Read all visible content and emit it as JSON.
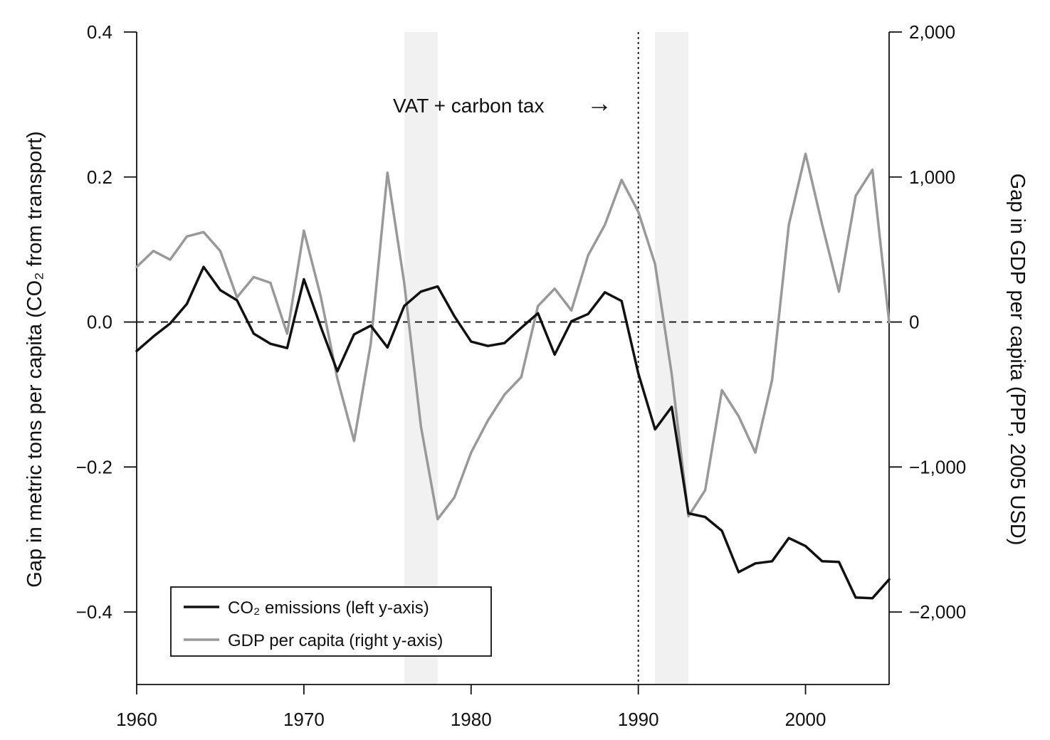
{
  "chart_data": {
    "type": "line",
    "title": "",
    "xlabel": "",
    "ylabel_left": "Gap in metric tons per capita (CO₂ from transport)",
    "ylabel_right": "Gap in GDP per capita (PPP, 2005 USD)",
    "x_range": [
      1960,
      2005
    ],
    "x_ticks": [
      1960,
      1970,
      1980,
      1990,
      2000
    ],
    "y_left_range": [
      -0.5,
      0.4
    ],
    "y_left_ticks": [
      0.4,
      0.2,
      0.0,
      -0.2,
      -0.4
    ],
    "y_left_tick_labels": [
      "0.4",
      "0.2",
      "0.0",
      "−0.2",
      "−0.4"
    ],
    "y_right_range": [
      -2500,
      2000
    ],
    "y_right_ticks": [
      2000,
      1000,
      0,
      -1000,
      -2000
    ],
    "y_right_tick_labels": [
      "2,000",
      "1,000",
      "0",
      "−1,000",
      "−2,000"
    ],
    "shaded_regions": [
      [
        1976,
        1978
      ],
      [
        1991,
        1993
      ]
    ],
    "vertical_line": 1990,
    "zero_line": 0,
    "annotation": "VAT + carbon tax",
    "annotation_arrow": "→",
    "legend_position": "bottom-left",
    "series": [
      {
        "name": "CO₂ emissions (left y-axis)",
        "axis": "left",
        "color": "#111111",
        "x": [
          1960,
          1961,
          1962,
          1963,
          1964,
          1965,
          1966,
          1967,
          1968,
          1969,
          1970,
          1971,
          1972,
          1973,
          1974,
          1975,
          1976,
          1977,
          1978,
          1979,
          1980,
          1981,
          1982,
          1983,
          1984,
          1985,
          1986,
          1987,
          1988,
          1989,
          1990,
          1991,
          1992,
          1993,
          1994,
          1995,
          1996,
          1997,
          1998,
          1999,
          2000,
          2001,
          2002,
          2003,
          2004,
          2005
        ],
        "values": [
          -0.04,
          -0.02,
          -0.002,
          0.025,
          0.076,
          0.044,
          0.03,
          -0.016,
          -0.03,
          -0.036,
          0.059,
          -0.006,
          -0.068,
          -0.017,
          -0.005,
          -0.035,
          0.022,
          0.042,
          0.049,
          0.008,
          -0.027,
          -0.033,
          -0.029,
          -0.008,
          0.012,
          -0.045,
          0.001,
          0.011,
          0.041,
          0.029,
          -0.071,
          -0.148,
          -0.117,
          -0.264,
          -0.269,
          -0.288,
          -0.345,
          -0.333,
          -0.33,
          -0.298,
          -0.309,
          -0.33,
          -0.331,
          -0.38,
          -0.381,
          -0.355
        ]
      },
      {
        "name": "GDP per capita (right y-axis)",
        "axis": "right",
        "color": "#999999",
        "x": [
          1960,
          1961,
          1962,
          1963,
          1964,
          1965,
          1966,
          1967,
          1968,
          1969,
          1970,
          1971,
          1972,
          1973,
          1974,
          1975,
          1976,
          1977,
          1978,
          1979,
          1980,
          1981,
          1982,
          1983,
          1984,
          1985,
          1986,
          1987,
          1988,
          1989,
          1990,
          1991,
          1992,
          1993,
          1994,
          1995,
          1996,
          1997,
          1998,
          1999,
          2000,
          2001,
          2002,
          2003,
          2004,
          2005
        ],
        "values": [
          380,
          490,
          430,
          590,
          620,
          490,
          170,
          310,
          270,
          -80,
          630,
          180,
          -390,
          -820,
          -150,
          1030,
          270,
          -720,
          -1360,
          -1210,
          -900,
          -680,
          -500,
          -380,
          110,
          230,
          80,
          460,
          670,
          980,
          760,
          400,
          -360,
          -1340,
          -1160,
          -470,
          -650,
          -900,
          -400,
          670,
          1160,
          670,
          210,
          870,
          1050,
          0
        ]
      }
    ]
  }
}
